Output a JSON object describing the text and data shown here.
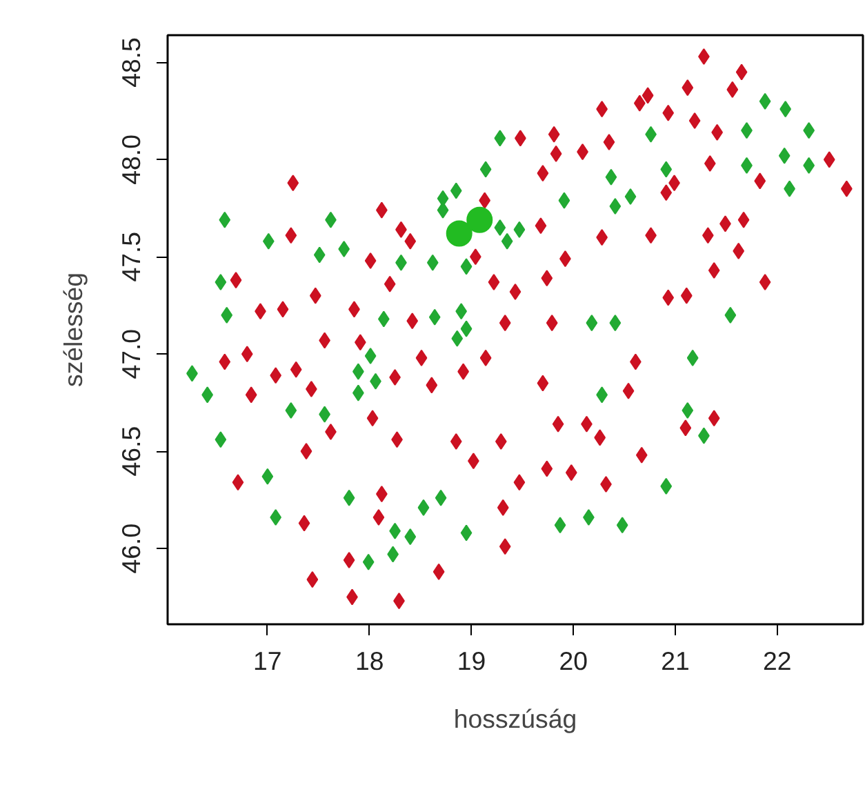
{
  "chart_data": {
    "type": "scatter",
    "xlabel": "hosszúság",
    "ylabel": "szélesség",
    "marker": "diamond",
    "grid": false,
    "xlim": [
      16.02,
      22.84
    ],
    "ylim": [
      45.61,
      48.64
    ],
    "xticks": [
      17,
      18,
      19,
      20,
      21,
      22
    ],
    "yticks": [
      {
        "value": 46,
        "label": "46.0"
      },
      46.5,
      {
        "value": 47,
        "label": "47.0"
      },
      47.5,
      {
        "value": 48,
        "label": "48.0"
      },
      48.5
    ],
    "series": [
      {
        "color": "#cc1122",
        "x": [
          19.48,
          17.25,
          19.13,
          18.12,
          18.31,
          18.4,
          17.23,
          18.01,
          19.04,
          19.22,
          19.43,
          18.2,
          16.69,
          17.47,
          16.93,
          17.15,
          17.85,
          18.42,
          19.33,
          21.28,
          21.65,
          21.12,
          21.56,
          20.73,
          20.65,
          20.28,
          20.93,
          21.19,
          19.81,
          20.35,
          20.09,
          19.83,
          21.41,
          19.7,
          21.34,
          22.51,
          20.99,
          21.83,
          22.68,
          20.91,
          19.68,
          20.28,
          20.76,
          21.32,
          21.49,
          21.67,
          21.62,
          19.92,
          21.38,
          19.74,
          21.88,
          20.93,
          21.11,
          19.79,
          17.56,
          17.91,
          16.8,
          16.58,
          17.08,
          17.28,
          17.43,
          16.84,
          18.25,
          18.51,
          18.61,
          18.92,
          19.14,
          17.62,
          18.03,
          18.27,
          17.38,
          18.85,
          19.29,
          19.02,
          19.47,
          16.71,
          18.12,
          19.31,
          17.36,
          18.09,
          19.33,
          17.8,
          18.68,
          17.44,
          17.83,
          18.29,
          20.61,
          19.7,
          20.54,
          21.38,
          21.1,
          19.85,
          20.13,
          20.26,
          20.67,
          19.74,
          19.98,
          20.32
        ],
        "values": [
          48.11,
          47.88,
          47.79,
          47.74,
          47.64,
          47.58,
          47.61,
          47.48,
          47.5,
          47.37,
          47.32,
          47.36,
          47.38,
          47.3,
          47.22,
          47.23,
          47.23,
          47.17,
          47.16,
          48.53,
          48.45,
          48.37,
          48.36,
          48.33,
          48.29,
          48.26,
          48.24,
          48.2,
          48.13,
          48.09,
          48.04,
          48.03,
          48.14,
          47.93,
          47.98,
          48.0,
          47.88,
          47.89,
          47.85,
          47.83,
          47.66,
          47.6,
          47.61,
          47.61,
          47.67,
          47.69,
          47.53,
          47.49,
          47.43,
          47.39,
          47.37,
          47.29,
          47.3,
          47.16,
          47.07,
          47.06,
          47.0,
          46.96,
          46.89,
          46.92,
          46.82,
          46.79,
          46.88,
          46.98,
          46.84,
          46.91,
          46.98,
          46.6,
          46.67,
          46.56,
          46.5,
          46.55,
          46.55,
          46.45,
          46.34,
          46.34,
          46.28,
          46.21,
          46.13,
          46.16,
          46.01,
          45.94,
          45.88,
          45.84,
          45.75,
          45.73,
          46.96,
          46.85,
          46.81,
          46.67,
          46.62,
          46.64,
          46.64,
          46.57,
          46.48,
          46.41,
          46.39,
          46.33
        ]
      },
      {
        "color": "#22aa33",
        "x": [
          19.28,
          19.14,
          18.85,
          18.72,
          18.72,
          16.58,
          17.62,
          19.28,
          19.47,
          19.35,
          17.01,
          17.51,
          17.75,
          18.31,
          18.62,
          18.95,
          16.54,
          16.6,
          18.14,
          18.64,
          18.9,
          21.88,
          22.08,
          20.76,
          21.7,
          22.31,
          20.37,
          21.7,
          22.07,
          22.31,
          20.91,
          22.12,
          19.91,
          20.41,
          20.56,
          21.54,
          20.18,
          20.41,
          18.95,
          18.86,
          16.26,
          18.01,
          17.89,
          18.06,
          17.89,
          16.41,
          17.23,
          17.56,
          16.54,
          17.0,
          17.8,
          18.7,
          18.53,
          17.08,
          18.25,
          18.4,
          18.95,
          17.99,
          18.23,
          21.17,
          20.28,
          21.12,
          21.28,
          20.91,
          19.87,
          20.15,
          20.48
        ],
        "values": [
          48.11,
          47.95,
          47.84,
          47.8,
          47.74,
          47.69,
          47.69,
          47.65,
          47.64,
          47.58,
          47.58,
          47.51,
          47.54,
          47.47,
          47.47,
          47.45,
          47.37,
          47.2,
          47.18,
          47.19,
          47.22,
          48.3,
          48.26,
          48.13,
          48.15,
          48.15,
          47.91,
          47.97,
          48.02,
          47.97,
          47.95,
          47.85,
          47.79,
          47.76,
          47.81,
          47.2,
          47.16,
          47.16,
          47.13,
          47.08,
          46.9,
          46.99,
          46.91,
          46.86,
          46.8,
          46.79,
          46.71,
          46.69,
          46.56,
          46.37,
          46.26,
          46.26,
          46.21,
          46.16,
          46.09,
          46.06,
          46.08,
          45.93,
          45.97,
          46.98,
          46.79,
          46.71,
          46.58,
          46.32,
          46.12,
          46.16,
          46.12
        ]
      },
      {
        "color": "#22bb22",
        "marker": "circle",
        "x": [
          18.88,
          19.08
        ],
        "values": [
          47.62,
          47.69
        ]
      }
    ]
  }
}
